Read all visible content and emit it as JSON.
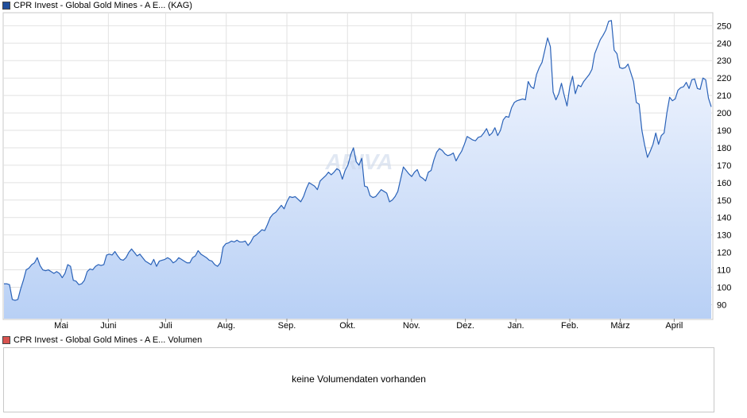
{
  "legend_top": {
    "label": "CPR Invest - Global Gold Mines - A E... (KAG)",
    "color": "#1f4e9c"
  },
  "legend_bottom": {
    "label": "CPR Invest - Global Gold Mines - A E... Volumen",
    "color": "#d9534f"
  },
  "volume": {
    "message": "keine Volumendaten vorhanden"
  },
  "watermark": "ARIVA",
  "colors": {
    "line": "#2a62b8",
    "area_top": "#f7f9ff",
    "area_bottom": "#b8d0f5",
    "grid": "#e2e2e2"
  },
  "chart_data": {
    "type": "area",
    "ylim": [
      82,
      257
    ],
    "y_ticks": [
      90,
      100,
      110,
      120,
      130,
      140,
      150,
      160,
      170,
      180,
      190,
      200,
      210,
      220,
      230,
      240,
      250
    ],
    "x_labels": [
      "Mai",
      "Juni",
      "Juli",
      "Aug.",
      "Sep.",
      "Okt.",
      "Nov.",
      "Dez.",
      "Jan.",
      "Feb.",
      "März",
      "April"
    ],
    "values": [
      102,
      102,
      101.5,
      93,
      92.5,
      93,
      99,
      104,
      110,
      111,
      113,
      114,
      117,
      112.5,
      110,
      109.5,
      110,
      109,
      108,
      109,
      108,
      105.5,
      108,
      113,
      112,
      104,
      103.5,
      101.5,
      102,
      104,
      109,
      110.5,
      110,
      112,
      113,
      112.5,
      113,
      118.5,
      119,
      118.5,
      120.5,
      118,
      116,
      115.5,
      117,
      120,
      122,
      120,
      118,
      119,
      117,
      115,
      114,
      113,
      116,
      112,
      115,
      115.5,
      116,
      117,
      116,
      114,
      115,
      117,
      116,
      115,
      114,
      114,
      117,
      118,
      121,
      119,
      118,
      117,
      115.5,
      115,
      113,
      112,
      114,
      123,
      125,
      125.5,
      126.5,
      126,
      127,
      126,
      126,
      126.5,
      124,
      126,
      129,
      130,
      131.5,
      133,
      132.5,
      136,
      140,
      142,
      143,
      145,
      147,
      145,
      149,
      152,
      151.5,
      152,
      150.5,
      149,
      152,
      156.5,
      160,
      159,
      158,
      156,
      161,
      162.5,
      164,
      166,
      164.5,
      166,
      168,
      167,
      162,
      167,
      170,
      176,
      180,
      172,
      170,
      174,
      158,
      157.5,
      152.5,
      151.5,
      152,
      154,
      156,
      155,
      154,
      149,
      150,
      152,
      155,
      162,
      169,
      167,
      165,
      163.5,
      166,
      167.5,
      163.5,
      162.5,
      161,
      166,
      167,
      173,
      177.5,
      179.5,
      178.5,
      176.5,
      175.5,
      176,
      177,
      172.5,
      175.5,
      178,
      182,
      186.5,
      185.5,
      184.5,
      184,
      186,
      186.5,
      188.5,
      191,
      187,
      188.5,
      191.5,
      187,
      190,
      196,
      198,
      197.5,
      203,
      206,
      207,
      207.5,
      208,
      207.5,
      218,
      215,
      214,
      222,
      226,
      229,
      236,
      243,
      238,
      212,
      207.5,
      211,
      217,
      210,
      204,
      215,
      221,
      211,
      216,
      215,
      218,
      220,
      222,
      225,
      234,
      238,
      242,
      244.5,
      247.5,
      252.5,
      253,
      236,
      234,
      226,
      225.5,
      226,
      228,
      223,
      218,
      206,
      205,
      190,
      181.5,
      174.5,
      178,
      182,
      188.5,
      182,
      187,
      188.5,
      200,
      209,
      207,
      208,
      213,
      214.5,
      215,
      217.5,
      214,
      219,
      219.5,
      214,
      213.5,
      220,
      219,
      208.5,
      203.5
    ]
  }
}
